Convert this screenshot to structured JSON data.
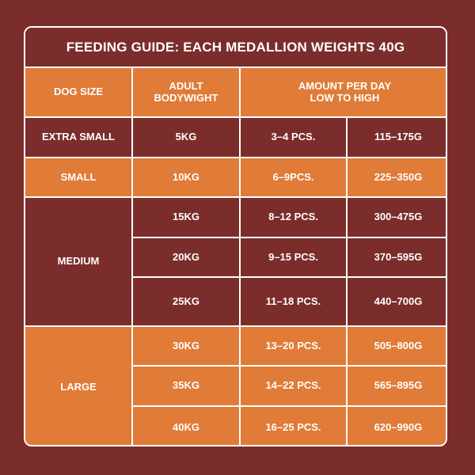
{
  "title": "FEEDING GUIDE: EACH MEDALLION WEIGHTS 40G",
  "header": {
    "dog_size": "DOG SIZE",
    "adult_bodyweight": "ADULT\nBODYWIGHT",
    "amount_per_day": "AMOUNT PER DAY\nLOW TO HIGH"
  },
  "colors": {
    "maroon": "#7b2d2b",
    "orange": "#e07b38",
    "border": "#ffffff"
  },
  "groups": [
    {
      "size": "EXTRA SMALL",
      "theme": "maroon",
      "rows": [
        {
          "weight": "5KG",
          "pieces": "3–4 PCS.",
          "grams": "115–175G"
        }
      ]
    },
    {
      "size": "SMALL",
      "theme": "orange",
      "rows": [
        {
          "weight": "10KG",
          "pieces": "6–9PCS.",
          "grams": "225–350G"
        }
      ]
    },
    {
      "size": "MEDIUM",
      "theme": "maroon",
      "rows": [
        {
          "weight": "15KG",
          "pieces": "8–12 PCS.",
          "grams": "300–475G"
        },
        {
          "weight": "20KG",
          "pieces": "9–15 PCS.",
          "grams": "370–595G"
        },
        {
          "weight": "25KG",
          "pieces": "11–18 PCS.",
          "grams": "440–700G"
        }
      ]
    },
    {
      "size": "LARGE",
      "theme": "orange",
      "rows": [
        {
          "weight": "30KG",
          "pieces": "13–20 PCS.",
          "grams": "505–800G"
        },
        {
          "weight": "35KG",
          "pieces": "14–22 PCS.",
          "grams": "565–895G"
        },
        {
          "weight": "40KG",
          "pieces": "16–25 PCS.",
          "grams": "620–990G"
        }
      ]
    }
  ]
}
